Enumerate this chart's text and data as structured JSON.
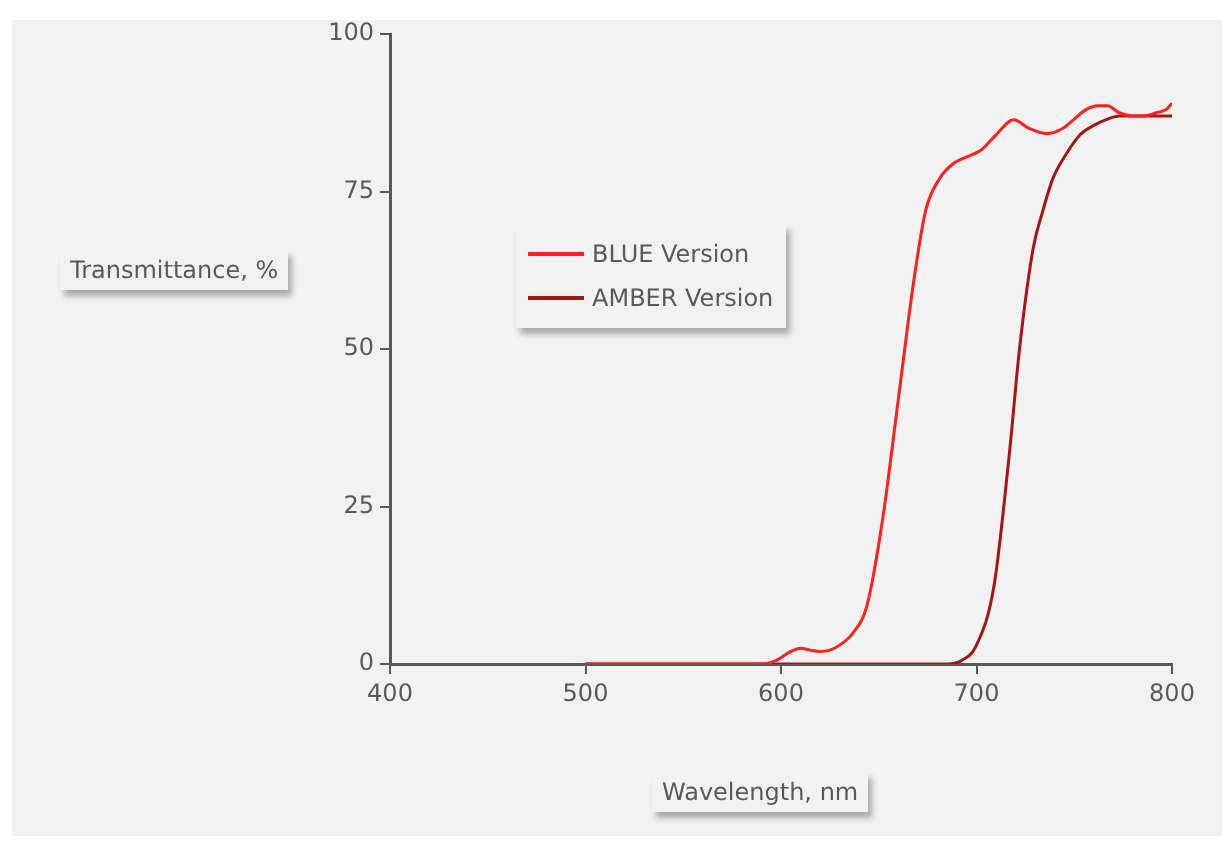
{
  "chart_data": {
    "type": "line",
    "xlabel": "Wavelength, nm",
    "ylabel": "Transmittance, %",
    "xlim": [
      400,
      800
    ],
    "xticks": [
      400,
      500,
      600,
      700,
      800
    ],
    "ylim": [
      0,
      100
    ],
    "yticks": [
      0,
      25,
      50,
      75,
      100
    ],
    "grid": false,
    "legend": "left",
    "marker": "none",
    "line_style": "solid",
    "series": [
      {
        "name": "BLUE Version",
        "color": "#ff1f1f",
        "x": [
          500,
          590,
          597,
          605,
          610,
          615,
          620,
          625,
          630,
          637,
          644,
          652,
          660,
          668,
          674,
          681,
          688,
          695,
          702,
          710,
          719,
          727,
          736,
          744,
          750,
          756,
          762,
          767,
          773,
          780,
          786,
          792,
          797,
          800
        ],
        "values": [
          0,
          0,
          0.5,
          2,
          2.5,
          2.2,
          2,
          2.2,
          3,
          5,
          9.3,
          23,
          42,
          61,
          72,
          77,
          79.4,
          80.5,
          81.5,
          84,
          86.4,
          85,
          84.2,
          85,
          86.5,
          88,
          88.6,
          88.6,
          87.5,
          87,
          87,
          87.5,
          88,
          89
        ]
      },
      {
        "name": "AMBER Version",
        "color": "#a81414",
        "x": [
          500,
          685,
          692,
          700,
          709,
          717,
          722,
          729,
          734,
          739,
          746,
          753,
          760,
          767,
          773,
          780,
          790,
          800
        ],
        "values": [
          0,
          0,
          0.5,
          3,
          12.5,
          34,
          50,
          66,
          72,
          77,
          81,
          84,
          85.5,
          86.5,
          87,
          87,
          87,
          87
        ]
      }
    ]
  }
}
